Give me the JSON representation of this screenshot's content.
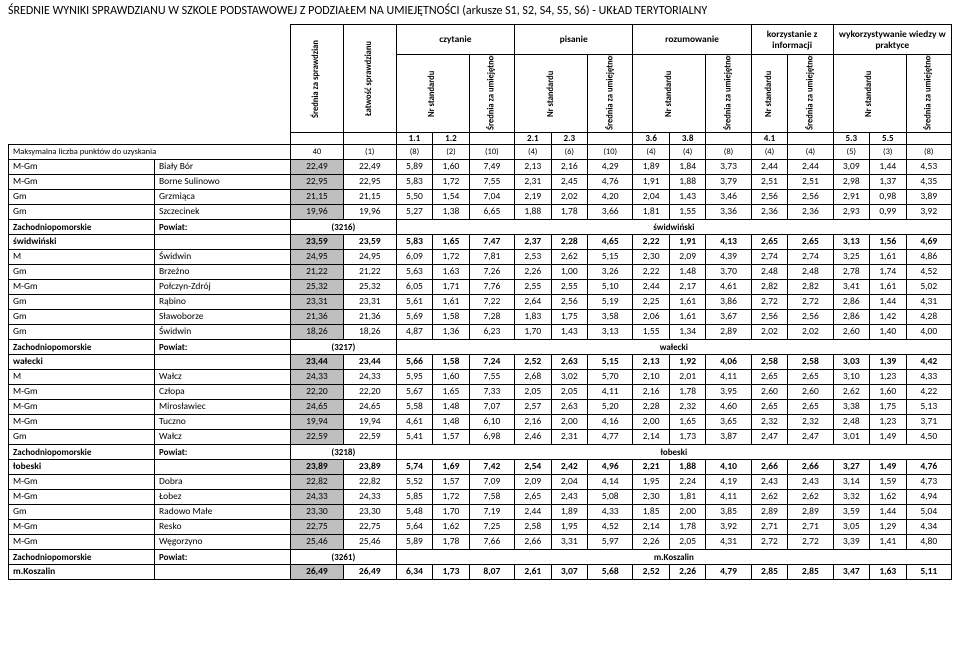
{
  "title": "ŚREDNIE WYNIKI SPRAWDZIANU W SZKOLE PODSTAWOWEJ Z PODZIAŁEM NA UMIEJĘTNOŚCI (arkusze S1, S2, S4, S5, S6) - UKŁAD TERYTORIALNY",
  "group_headers": [
    "czytanie",
    "pisanie",
    "rozumowanie",
    "korzystanie z informacji",
    "wykorzystywanie wiedzy w praktyce"
  ],
  "vert_headers": [
    "Średnia za sprawdzian",
    "Łatwość sprawdzianu",
    "Nr standardu",
    "Średnia za umiejętność",
    "Nr standardu",
    "Średnia za umiejętność",
    "Nr standardu",
    "Średnia za umiejętność",
    "Nr standardu",
    "Średnia za umiejętność",
    "Nr standardu",
    "Średnia za umiejętność"
  ],
  "mini": [
    "1.1",
    "1.2",
    "",
    "2.1",
    "2.3",
    "",
    "3.6",
    "3.8",
    "",
    "4.1",
    "",
    "5.3",
    "5.5",
    ""
  ],
  "maxrow": {
    "label": "Maksymalna liczba punktów do uzyskania",
    "cells": [
      "40",
      "(1)",
      "(8)",
      "(2)",
      "(10)",
      "(4)",
      "(6)",
      "(10)",
      "(4)",
      "(4)",
      "(8)",
      "(4)",
      "(4)",
      "(5)",
      "(3)",
      "(8)"
    ]
  },
  "rows": [
    {
      "type": "data",
      "a": "M-Gm",
      "b": "Biały Bór",
      "g": 1,
      "v": [
        "22,49",
        "22,49",
        "5,89",
        "1,60",
        "7,49",
        "2,13",
        "2,16",
        "4,29",
        "1,89",
        "1,84",
        "3,73",
        "2,44",
        "2,44",
        "3,09",
        "1,44",
        "4,53"
      ]
    },
    {
      "type": "data",
      "a": "M-Gm",
      "b": "Borne Sulinowo",
      "g": 1,
      "v": [
        "22,95",
        "22,95",
        "5,83",
        "1,72",
        "7,55",
        "2,31",
        "2,45",
        "4,76",
        "1,91",
        "1,88",
        "3,79",
        "2,51",
        "2,51",
        "2,98",
        "1,37",
        "4,35"
      ]
    },
    {
      "type": "data",
      "a": "Gm",
      "b": "Grzmiąca",
      "g": 1,
      "v": [
        "21,15",
        "21,15",
        "5,50",
        "1,54",
        "7,04",
        "2,19",
        "2,02",
        "4,20",
        "2,04",
        "1,43",
        "3,46",
        "2,56",
        "2,56",
        "2,91",
        "0,98",
        "3,89"
      ]
    },
    {
      "type": "data",
      "a": "Gm",
      "b": "Szczecinek",
      "g": 1,
      "v": [
        "19,96",
        "19,96",
        "5,27",
        "1,38",
        "6,65",
        "1,88",
        "1,78",
        "3,66",
        "1,81",
        "1,55",
        "3,36",
        "2,36",
        "2,36",
        "2,93",
        "0,99",
        "3,92"
      ]
    },
    {
      "type": "powiat",
      "a": "Zachodniopomorskie",
      "b": "Powiat:",
      "code": "(3216)",
      "name": "świdwiński"
    },
    {
      "type": "sum",
      "a": "świdwiński",
      "b": "",
      "g": 1,
      "v": [
        "23,59",
        "23,59",
        "5,83",
        "1,65",
        "7,47",
        "2,37",
        "2,28",
        "4,65",
        "2,22",
        "1,91",
        "4,13",
        "2,65",
        "2,65",
        "3,13",
        "1,56",
        "4,69"
      ]
    },
    {
      "type": "data",
      "a": "M",
      "b": "Świdwin",
      "g": 1,
      "v": [
        "24,95",
        "24,95",
        "6,09",
        "1,72",
        "7,81",
        "2,53",
        "2,62",
        "5,15",
        "2,30",
        "2,09",
        "4,39",
        "2,74",
        "2,74",
        "3,25",
        "1,61",
        "4,86"
      ]
    },
    {
      "type": "data",
      "a": "Gm",
      "b": "Brzeżno",
      "g": 1,
      "v": [
        "21,22",
        "21,22",
        "5,63",
        "1,63",
        "7,26",
        "2,26",
        "1,00",
        "3,26",
        "2,22",
        "1,48",
        "3,70",
        "2,48",
        "2,48",
        "2,78",
        "1,74",
        "4,52"
      ]
    },
    {
      "type": "data",
      "a": "M-Gm",
      "b": "Połczyn-Zdrój",
      "g": 1,
      "v": [
        "25,32",
        "25,32",
        "6,05",
        "1,71",
        "7,76",
        "2,55",
        "2,55",
        "5,10",
        "2,44",
        "2,17",
        "4,61",
        "2,82",
        "2,82",
        "3,41",
        "1,61",
        "5,02"
      ]
    },
    {
      "type": "data",
      "a": "Gm",
      "b": "Rąbino",
      "g": 1,
      "v": [
        "23,31",
        "23,31",
        "5,61",
        "1,61",
        "7,22",
        "2,64",
        "2,56",
        "5,19",
        "2,25",
        "1,61",
        "3,86",
        "2,72",
        "2,72",
        "2,86",
        "1,44",
        "4,31"
      ]
    },
    {
      "type": "data",
      "a": "Gm",
      "b": "Sławoborze",
      "g": 1,
      "v": [
        "21,36",
        "21,36",
        "5,69",
        "1,58",
        "7,28",
        "1,83",
        "1,75",
        "3,58",
        "2,06",
        "1,61",
        "3,67",
        "2,56",
        "2,56",
        "2,86",
        "1,42",
        "4,28"
      ]
    },
    {
      "type": "data",
      "a": "Gm",
      "b": "Świdwin",
      "g": 1,
      "v": [
        "18,26",
        "18,26",
        "4,87",
        "1,36",
        "6,23",
        "1,70",
        "1,43",
        "3,13",
        "1,55",
        "1,34",
        "2,89",
        "2,02",
        "2,02",
        "2,60",
        "1,40",
        "4,00"
      ]
    },
    {
      "type": "powiat",
      "a": "Zachodniopomorskie",
      "b": "Powiat:",
      "code": "(3217)",
      "name": "wałecki"
    },
    {
      "type": "sum",
      "a": "wałecki",
      "b": "",
      "g": 1,
      "v": [
        "23,44",
        "23,44",
        "5,66",
        "1,58",
        "7,24",
        "2,52",
        "2,63",
        "5,15",
        "2,13",
        "1,92",
        "4,06",
        "2,58",
        "2,58",
        "3,03",
        "1,39",
        "4,42"
      ]
    },
    {
      "type": "data",
      "a": "M",
      "b": "Wałcz",
      "g": 1,
      "v": [
        "24,33",
        "24,33",
        "5,95",
        "1,60",
        "7,55",
        "2,68",
        "3,02",
        "5,70",
        "2,10",
        "2,01",
        "4,11",
        "2,65",
        "2,65",
        "3,10",
        "1,23",
        "4,33"
      ]
    },
    {
      "type": "data",
      "a": "M-Gm",
      "b": "Człopa",
      "g": 1,
      "v": [
        "22,20",
        "22,20",
        "5,67",
        "1,65",
        "7,33",
        "2,05",
        "2,05",
        "4,11",
        "2,16",
        "1,78",
        "3,95",
        "2,60",
        "2,60",
        "2,62",
        "1,60",
        "4,22"
      ]
    },
    {
      "type": "data",
      "a": "M-Gm",
      "b": "Mirosławiec",
      "g": 1,
      "v": [
        "24,65",
        "24,65",
        "5,58",
        "1,48",
        "7,07",
        "2,57",
        "2,63",
        "5,20",
        "2,28",
        "2,32",
        "4,60",
        "2,65",
        "2,65",
        "3,38",
        "1,75",
        "5,13"
      ]
    },
    {
      "type": "data",
      "a": "M-Gm",
      "b": "Tuczno",
      "g": 1,
      "v": [
        "19,94",
        "19,94",
        "4,61",
        "1,48",
        "6,10",
        "2,16",
        "2,00",
        "4,16",
        "2,00",
        "1,65",
        "3,65",
        "2,32",
        "2,32",
        "2,48",
        "1,23",
        "3,71"
      ]
    },
    {
      "type": "data",
      "a": "Gm",
      "b": "Wałcz",
      "g": 1,
      "v": [
        "22,59",
        "22,59",
        "5,41",
        "1,57",
        "6,98",
        "2,46",
        "2,31",
        "4,77",
        "2,14",
        "1,73",
        "3,87",
        "2,47",
        "2,47",
        "3,01",
        "1,49",
        "4,50"
      ]
    },
    {
      "type": "powiat",
      "a": "Zachodniopomorskie",
      "b": "Powiat:",
      "code": "(3218)",
      "name": "łobeski"
    },
    {
      "type": "sum",
      "a": "łobeski",
      "b": "",
      "g": 1,
      "v": [
        "23,89",
        "23,89",
        "5,74",
        "1,69",
        "7,42",
        "2,54",
        "2,42",
        "4,96",
        "2,21",
        "1,88",
        "4,10",
        "2,66",
        "2,66",
        "3,27",
        "1,49",
        "4,76"
      ]
    },
    {
      "type": "data",
      "a": "M-Gm",
      "b": "Dobra",
      "g": 1,
      "v": [
        "22,82",
        "22,82",
        "5,52",
        "1,57",
        "7,09",
        "2,09",
        "2,04",
        "4,14",
        "1,95",
        "2,24",
        "4,19",
        "2,43",
        "2,43",
        "3,14",
        "1,59",
        "4,73"
      ]
    },
    {
      "type": "data",
      "a": "M-Gm",
      "b": "Łobez",
      "g": 1,
      "v": [
        "24,33",
        "24,33",
        "5,85",
        "1,72",
        "7,58",
        "2,65",
        "2,43",
        "5,08",
        "2,30",
        "1,81",
        "4,11",
        "2,62",
        "2,62",
        "3,32",
        "1,62",
        "4,94"
      ]
    },
    {
      "type": "data",
      "a": "Gm",
      "b": "Radowo Małe",
      "g": 1,
      "v": [
        "23,30",
        "23,30",
        "5,48",
        "1,70",
        "7,19",
        "2,44",
        "1,89",
        "4,33",
        "1,85",
        "2,00",
        "3,85",
        "2,89",
        "2,89",
        "3,59",
        "1,44",
        "5,04"
      ]
    },
    {
      "type": "data",
      "a": "M-Gm",
      "b": "Resko",
      "g": 1,
      "v": [
        "22,75",
        "22,75",
        "5,64",
        "1,62",
        "7,25",
        "2,58",
        "1,95",
        "4,52",
        "2,14",
        "1,78",
        "3,92",
        "2,71",
        "2,71",
        "3,05",
        "1,29",
        "4,34"
      ]
    },
    {
      "type": "data",
      "a": "M-Gm",
      "b": "Węgorzyno",
      "g": 1,
      "v": [
        "25,46",
        "25,46",
        "5,89",
        "1,78",
        "7,66",
        "2,66",
        "3,31",
        "5,97",
        "2,26",
        "2,05",
        "4,31",
        "2,72",
        "2,72",
        "3,39",
        "1,41",
        "4,80"
      ]
    },
    {
      "type": "powiat",
      "a": "Zachodniopomorskie",
      "b": "Powiat:",
      "code": "(3261)",
      "name": "m.Koszalin"
    },
    {
      "type": "sum",
      "a": "m.Koszalin",
      "b": "",
      "g": 1,
      "v": [
        "26,49",
        "26,49",
        "6,34",
        "1,73",
        "8,07",
        "2,61",
        "3,07",
        "5,68",
        "2,52",
        "2,26",
        "4,79",
        "2,85",
        "2,85",
        "3,47",
        "1,63",
        "5,11"
      ]
    }
  ]
}
